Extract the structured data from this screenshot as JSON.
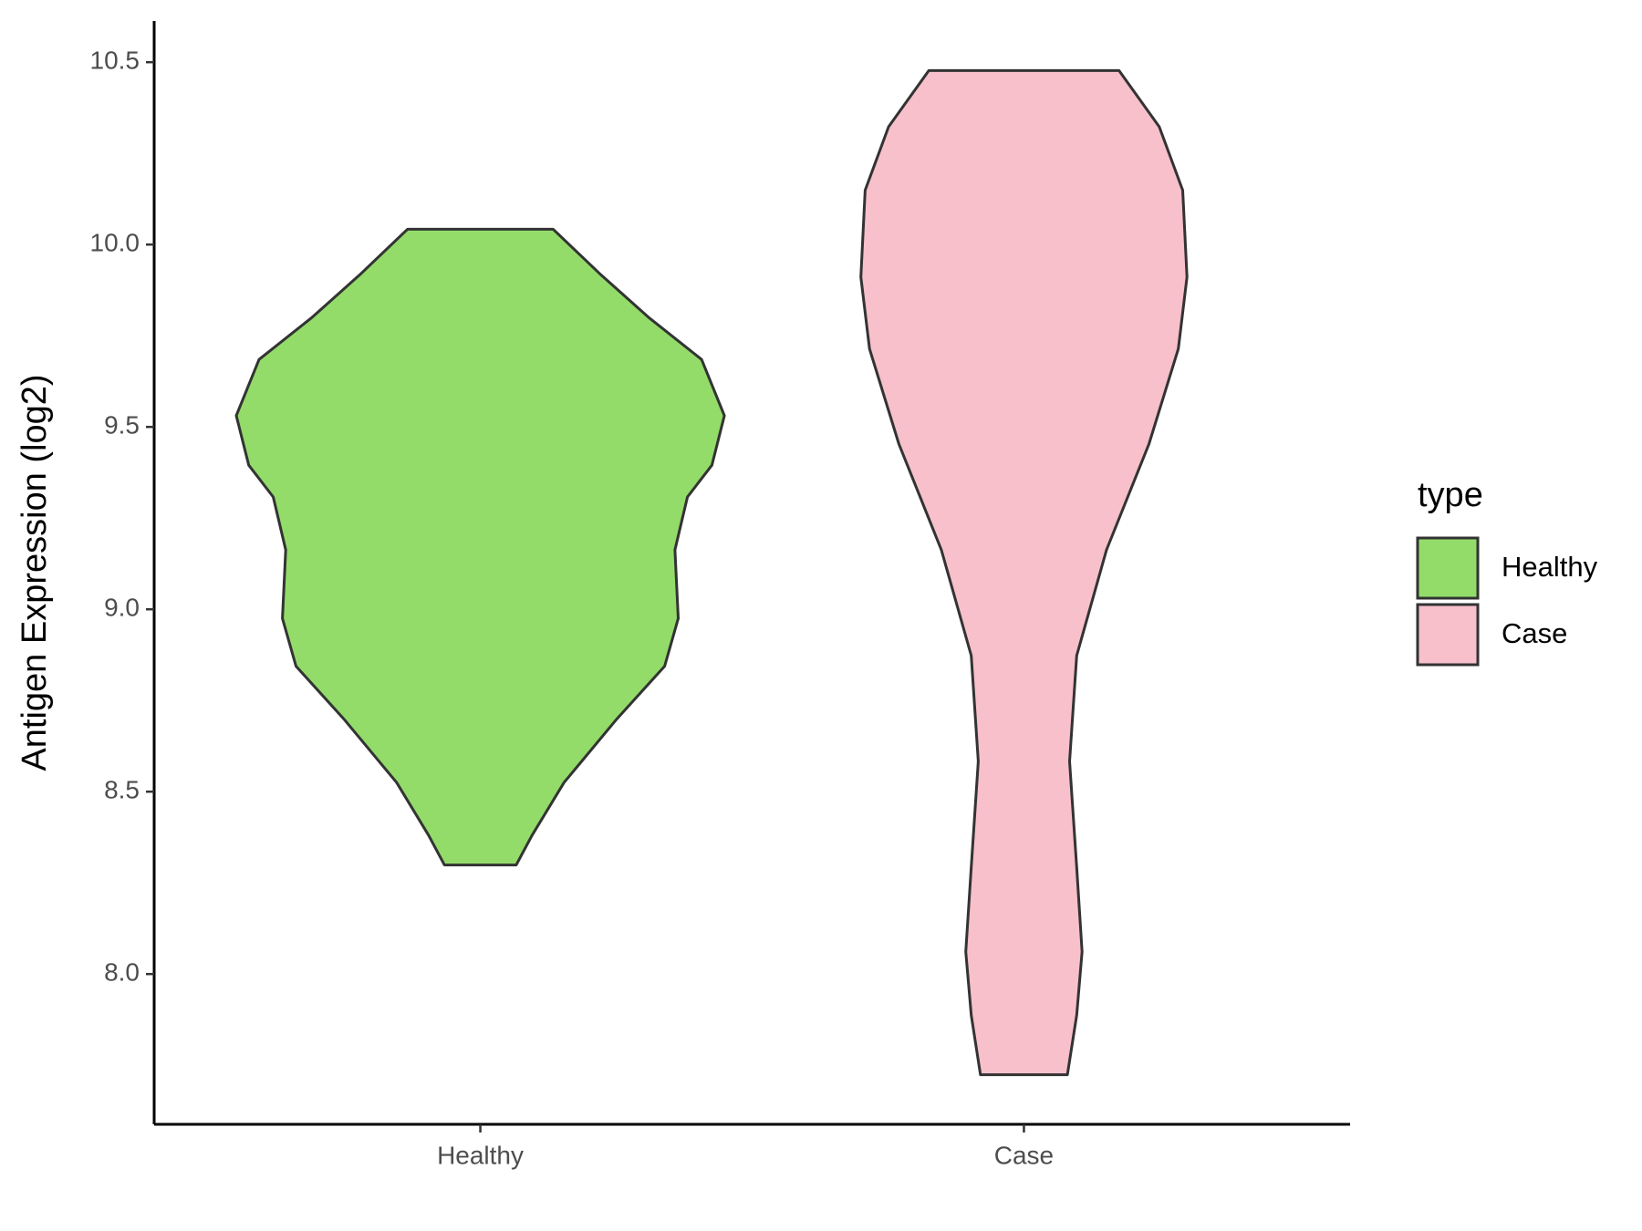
{
  "chart_data": {
    "type": "violin",
    "y_label": "Antigen Expression (log2)",
    "categories": [
      "Healthy",
      "Case"
    ],
    "series": [
      {
        "name": "Healthy",
        "color": "#93dc6a",
        "y": [
          10.042,
          9.917,
          9.801,
          9.685,
          9.531,
          9.395,
          9.308,
          9.163,
          8.975,
          8.844,
          8.699,
          8.525,
          8.38,
          8.299
        ],
        "widths": [
          0.134,
          0.222,
          0.309,
          0.407,
          0.449,
          0.426,
          0.381,
          0.358,
          0.364,
          0.339,
          0.251,
          0.154,
          0.095,
          0.066
        ]
      },
      {
        "name": "Case",
        "color": "#f7c0cb",
        "y": [
          10.477,
          10.323,
          10.149,
          9.911,
          9.714,
          9.453,
          9.163,
          8.873,
          8.583,
          8.293,
          8.061,
          7.887,
          7.724
        ],
        "widths": [
          0.175,
          0.249,
          0.292,
          0.3,
          0.284,
          0.23,
          0.152,
          0.097,
          0.084,
          0.097,
          0.107,
          0.097,
          0.08
        ]
      }
    ],
    "ylim": [
      7.588,
      10.613
    ],
    "yticks": [
      {
        "value": 8,
        "label": "8.0"
      },
      8.5,
      {
        "value": 9,
        "label": "9.0"
      },
      9.5,
      {
        "value": 10,
        "label": "10.0"
      },
      10.5
    ],
    "legend_title": "type",
    "legend": "right",
    "grid": false
  }
}
